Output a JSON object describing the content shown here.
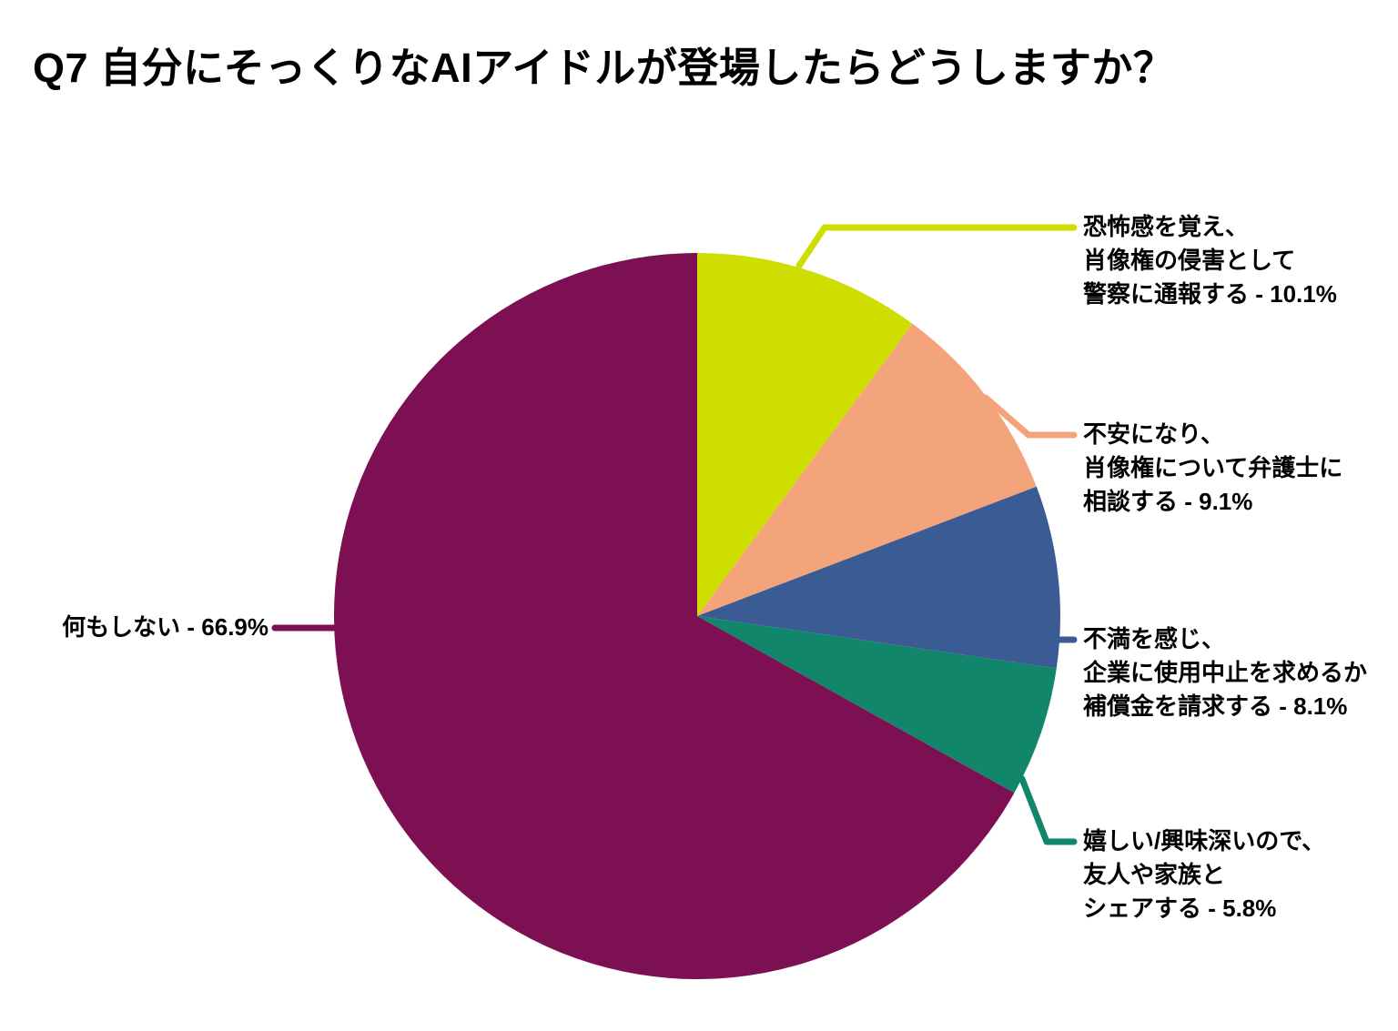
{
  "title": "Q7 自分にそっくりなAIアイドルが登場したらどうしますか？",
  "background_color": "#ffffff",
  "text_color": "#000000",
  "chart_data": {
    "type": "pie",
    "title": "Q7 自分にそっくりなAIアイドルが登場したらどうしますか？",
    "unit": "%",
    "direction": "clockwise",
    "start_angle_deg": 0,
    "legend_position": "callout-labels",
    "grid": false,
    "slices": [
      {
        "name": "恐怖感を覚え、肖像権の侵害として警察に通報する",
        "value": 10.1,
        "color": "#cdde00",
        "label_text": "恐怖感を覚え、\n肖像権の侵害として\n警察に通報する - 10.1%"
      },
      {
        "name": "不安になり、肖像権について弁護士に相談する",
        "value": 9.1,
        "color": "#f3a47b",
        "label_text": "不安になり、\n肖像権について弁護士に\n相談する - 9.1%"
      },
      {
        "name": "不満を感じ、企業に使用中止を求めるか補償金を請求する",
        "value": 8.1,
        "color": "#3a5b93",
        "label_text": "不満を感じ、\n企業に使用中止を求めるか\n補償金を請求する - 8.1%"
      },
      {
        "name": "嬉しい/興味深いので、友人や家族とシェアする",
        "value": 5.8,
        "color": "#12866b",
        "label_text": "嬉しい/興味深いので、\n友人や家族と\nシェアする - 5.8%"
      },
      {
        "name": "何もしない",
        "value": 66.9,
        "color": "#7d1053",
        "label_text": "何もしない - 66.9%"
      }
    ]
  }
}
